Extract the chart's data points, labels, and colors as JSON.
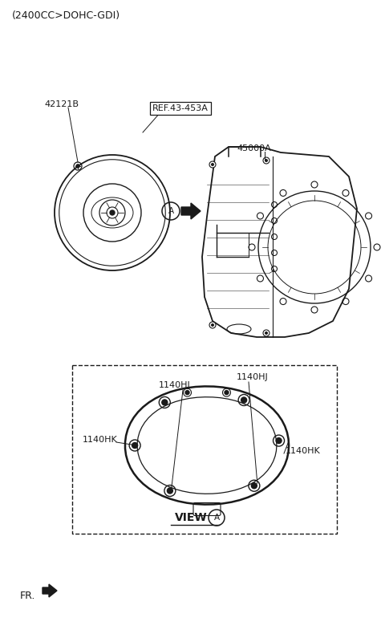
{
  "title_text": "(2400CC>DOHC-GDI)",
  "bg_color": "#ffffff",
  "label_42121B": "42121B",
  "label_REF": "REF.43-453A",
  "label_45000A": "45000A",
  "label_A": "A",
  "label_VIEW_A": "VIEW",
  "label_1140HJ_1": "1140HJ",
  "label_1140HJ_2": "1140HJ",
  "label_1140HK_1": "1140HK",
  "label_1140HK_2": "1140HK",
  "label_FR": "FR.",
  "line_color": "#1a1a1a",
  "text_color": "#1a1a1a"
}
